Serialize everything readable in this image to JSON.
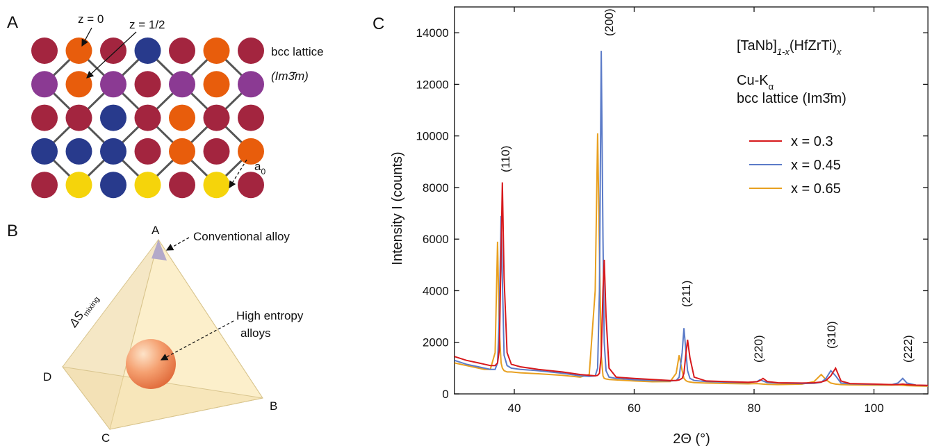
{
  "panel_a": {
    "label": "A",
    "z0": "z = 0",
    "z_half": "z = 1/2",
    "lattice": "bcc lattice",
    "space_group": "(Im3̄m)",
    "a0": {
      "main": "a",
      "sub": "0"
    }
  },
  "panel_b": {
    "label": "B",
    "vertex_a": "A",
    "vertex_b": "B",
    "vertex_c": "C",
    "vertex_d": "D",
    "conventional": "Conventional alloy",
    "high_entropy": [
      "High entropy",
      "alloys"
    ],
    "entropy_axis": {
      "main": "ΔS",
      "sub": "mixing"
    }
  },
  "chart_data": {
    "type": "line",
    "label": "C",
    "title": [
      "[TaNb]",
      "1-x",
      "(HfZrTi)",
      "x"
    ],
    "source": {
      "main": "Cu-K",
      "sub": "α"
    },
    "lattice": "bcc lattice (Im3̄m)",
    "x_label": "2Θ (°)",
    "y_label": "Intensity I (counts)",
    "xlim": [
      30,
      109
    ],
    "xticks": [
      40,
      60,
      80,
      100
    ],
    "ylim": [
      0,
      15000
    ],
    "yticks": [
      0,
      2000,
      4000,
      6000,
      8000,
      10000,
      12000,
      14000
    ],
    "peak_labels": [
      "(110)",
      "(200)",
      "(211)",
      "(220)",
      "(310)",
      "(222)"
    ],
    "x": [
      30,
      32,
      34,
      35,
      36,
      36.8,
      37.2,
      37.5,
      37.8,
      38,
      38.3,
      38.8,
      39.5,
      41,
      44,
      48,
      51,
      52.5,
      53.5,
      53.9,
      54.2,
      54.5,
      54.8,
      55,
      55.3,
      55.8,
      57,
      60,
      63,
      66,
      67,
      67.5,
      68,
      68.3,
      68.6,
      68.9,
      69.3,
      70,
      72,
      76,
      79,
      80.5,
      81,
      81.5,
      82.2,
      84,
      88,
      90,
      91.2,
      92,
      92.8,
      93.6,
      94.5,
      96,
      100,
      103,
      104,
      104.8,
      105.5,
      107,
      109
    ],
    "series": [
      {
        "name": "x = 0.3",
        "color": "#d7191c",
        "values": [
          1450,
          1300,
          1200,
          1150,
          1100,
          1100,
          1200,
          1700,
          5500,
          8200,
          4500,
          1600,
          1150,
          1050,
          950,
          850,
          750,
          720,
          700,
          720,
          800,
          1500,
          4000,
          5200,
          3000,
          1000,
          650,
          600,
          560,
          520,
          520,
          540,
          600,
          800,
          1500,
          2100,
          1400,
          650,
          500,
          470,
          450,
          470,
          520,
          600,
          480,
          430,
          420,
          430,
          460,
          520,
          700,
          1000,
          500,
          400,
          380,
          360,
          360,
          380,
          360,
          340,
          330
        ]
      },
      {
        "name": "x = 0.45",
        "color": "#5b7bc8",
        "values": [
          1300,
          1150,
          1050,
          1000,
          950,
          950,
          1200,
          3000,
          6900,
          4500,
          1500,
          1100,
          1000,
          950,
          900,
          800,
          700,
          680,
          700,
          1000,
          4000,
          13300,
          6000,
          2000,
          900,
          650,
          600,
          550,
          520,
          500,
          520,
          650,
          1600,
          2550,
          1700,
          900,
          600,
          520,
          480,
          450,
          440,
          480,
          550,
          500,
          440,
          420,
          400,
          410,
          450,
          600,
          900,
          700,
          420,
          390,
          370,
          360,
          420,
          600,
          420,
          340,
          320
        ]
      },
      {
        "name": "x = 0.65",
        "color": "#e8a020",
        "values": [
          1200,
          1100,
          1000,
          950,
          950,
          1600,
          5900,
          2500,
          1200,
          1000,
          900,
          850,
          850,
          820,
          780,
          720,
          650,
          750,
          4000,
          10100,
          5500,
          1500,
          700,
          600,
          580,
          560,
          540,
          500,
          470,
          480,
          800,
          1500,
          900,
          600,
          520,
          480,
          460,
          440,
          420,
          400,
          390,
          400,
          390,
          380,
          370,
          360,
          380,
          480,
          750,
          550,
          420,
          380,
          360,
          350,
          340,
          340,
          350,
          330,
          320,
          310,
          300
        ]
      }
    ]
  }
}
